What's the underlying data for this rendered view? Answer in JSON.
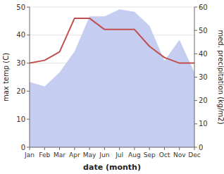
{
  "chart_data": {
    "type": "line",
    "categories": [
      "Jan",
      "Feb",
      "Mar",
      "Apr",
      "May",
      "Jun",
      "Jul",
      "Aug",
      "Sep",
      "Oct",
      "Nov",
      "Dec"
    ],
    "series": [
      {
        "type": "area",
        "color": "#c5cdf0",
        "axis": "y2",
        "values": [
          28,
          26,
          32,
          41,
          56,
          56,
          59,
          58,
          52,
          37,
          46,
          32
        ]
      },
      {
        "type": "line",
        "color": "#c0504d",
        "values": [
          30,
          31,
          34,
          46,
          46,
          42,
          42,
          42,
          36,
          32,
          30,
          30
        ]
      }
    ],
    "xlabel": "date (month)",
    "ylabel": "max temp (C)",
    "y2label": "med. precipitation (kg/m2)",
    "ylim": [
      0,
      50
    ],
    "yticks": [
      0,
      10,
      20,
      30,
      40,
      50
    ],
    "y2lim": [
      0,
      60
    ],
    "y2ticks": [
      0,
      10,
      20,
      30,
      40,
      50,
      60
    ],
    "grid": true
  }
}
